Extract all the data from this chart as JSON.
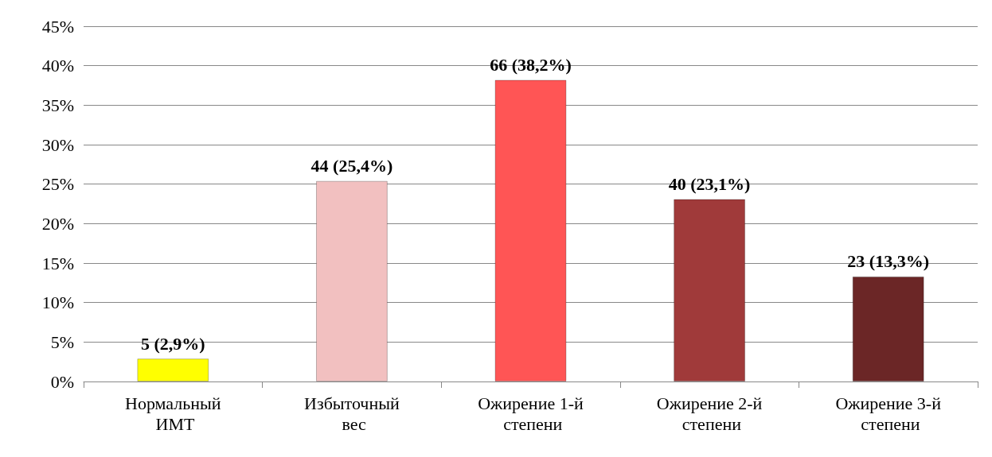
{
  "chart_data": {
    "type": "bar",
    "categories": [
      "Нормальный ИМТ",
      "Избыточный вес",
      "Ожирение 1-й степени",
      "Ожирение 2-й степени",
      "Ожирение 3-й степени"
    ],
    "values": [
      2.9,
      25.4,
      38.2,
      23.1,
      13.3
    ],
    "colors": [
      "#ffff00",
      "#f2c0c0",
      "#ff5555",
      "#a03a3a",
      "#6b2626"
    ],
    "value_labels": [
      "5 (2,9%)",
      "44 (25,4%)",
      "66 (38,2%)",
      "40 (23,1%)",
      "23 (13,3%)"
    ],
    "ylim": [
      0,
      45
    ],
    "yticks": [
      {
        "value": 0,
        "label": "0%"
      },
      {
        "value": 5,
        "label": "5%"
      },
      {
        "value": 10,
        "label": "10%"
      },
      {
        "value": 15,
        "label": "15%"
      },
      {
        "value": 20,
        "label": "20%"
      },
      {
        "value": 25,
        "label": "25%"
      },
      {
        "value": 30,
        "label": "30%"
      },
      {
        "value": 35,
        "label": "35%"
      },
      {
        "value": 40,
        "label": "40%"
      },
      {
        "value": 45,
        "label": "45%"
      }
    ],
    "grid": "y"
  }
}
